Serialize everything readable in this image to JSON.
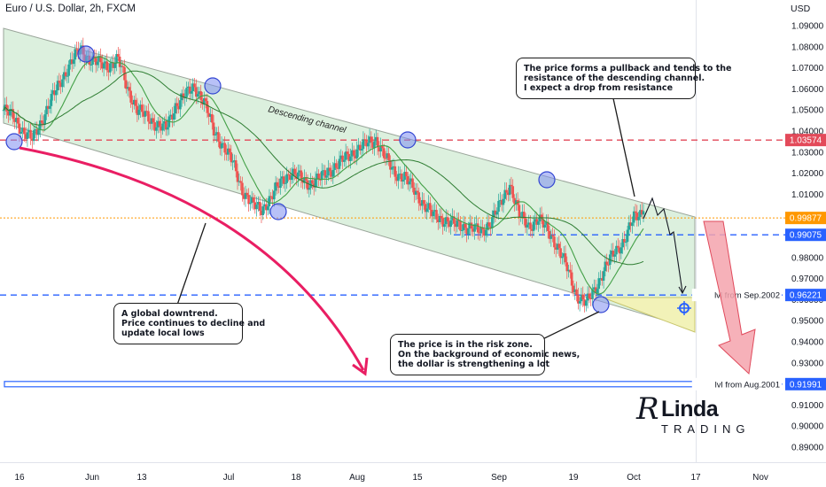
{
  "header": {
    "title": "Euro / U.S. Dollar, 2h, FXCM",
    "currency": "USD"
  },
  "chart_data": {
    "type": "line",
    "title": "Euro / U.S. Dollar, 2h, FXCM",
    "ylim": [
      0.885,
      1.095
    ],
    "y_ticks": [
      "1.09000",
      "1.08000",
      "1.07000",
      "1.06000",
      "1.05000",
      "1.04000",
      "1.03000",
      "1.02000",
      "1.01000",
      "1.00000",
      "0.99000",
      "0.98000",
      "0.97000",
      "0.96000",
      "0.95000",
      "0.94000",
      "0.93000",
      "0.92000",
      "0.91000",
      "0.90000",
      "0.89000"
    ],
    "x_ticks": [
      "16",
      "Jun",
      "13",
      "Jul",
      "18",
      "Aug",
      "15",
      "Sep",
      "19",
      "Oct",
      "17",
      "Nov"
    ],
    "series": [
      {
        "values": [
          1.05,
          1.047,
          1.04,
          1.036,
          1.045,
          1.055,
          1.064,
          1.072,
          1.079,
          1.074,
          1.072,
          1.071,
          1.074,
          1.06,
          1.05,
          1.047,
          1.043,
          1.041,
          1.052,
          1.057,
          1.061,
          1.054,
          1.04,
          1.033,
          1.025,
          1.012,
          1.005,
          1.003,
          1.008,
          1.016,
          1.02,
          1.018,
          1.015,
          1.017,
          1.021,
          1.024,
          1.028,
          1.031,
          1.034,
          1.036,
          1.027,
          1.02,
          1.018,
          1.012,
          1.005,
          1.0,
          0.998,
          0.996,
          0.995,
          0.994,
          0.992,
          0.997,
          1.005,
          1.015,
          1.0,
          0.995,
          0.998,
          0.993,
          0.985,
          0.975,
          0.962,
          0.958,
          0.966,
          0.975,
          0.983,
          0.988,
          0.999,
          1.002
        ]
      }
    ],
    "levels": [
      {
        "label": "1.03574",
        "value": 1.03574,
        "color": "#e34a5a"
      },
      {
        "label": "0.99877",
        "value": 0.99877,
        "color": "#ff9800"
      },
      {
        "label": "0.99075",
        "value": 0.99075,
        "color": "#2962ff"
      },
      {
        "label": "0.96221",
        "value": 0.96221,
        "color": "#2962ff",
        "note": "lvl from Sep.2002"
      },
      {
        "label": "0.91991",
        "value": 0.91991,
        "color": "#2962ff",
        "note": "lvl from Aug.2001"
      }
    ],
    "channel_label": "Descending channel",
    "grid": false,
    "colors": {
      "up": "#26a69a",
      "down": "#ef5350",
      "channel": "#d9f0dd",
      "arrow": "#e91e63",
      "forecast": "#f06c7a",
      "zone": "#f3f2b6"
    }
  },
  "annotations": {
    "resistance": [
      "The price forms a pullback and tends to the",
      "resistance of the descending channel.",
      "I expect a drop from resistance"
    ],
    "downtrend": [
      "A global downtrend.",
      "Price continues to decline and",
      "update local lows"
    ],
    "risk": [
      "The price is in the risk zone.",
      "On the background of economic news,",
      "the dollar is strengthening a lot"
    ]
  },
  "logo": {
    "initial": "R",
    "name": "Linda",
    "subtitle": "TRADING"
  }
}
